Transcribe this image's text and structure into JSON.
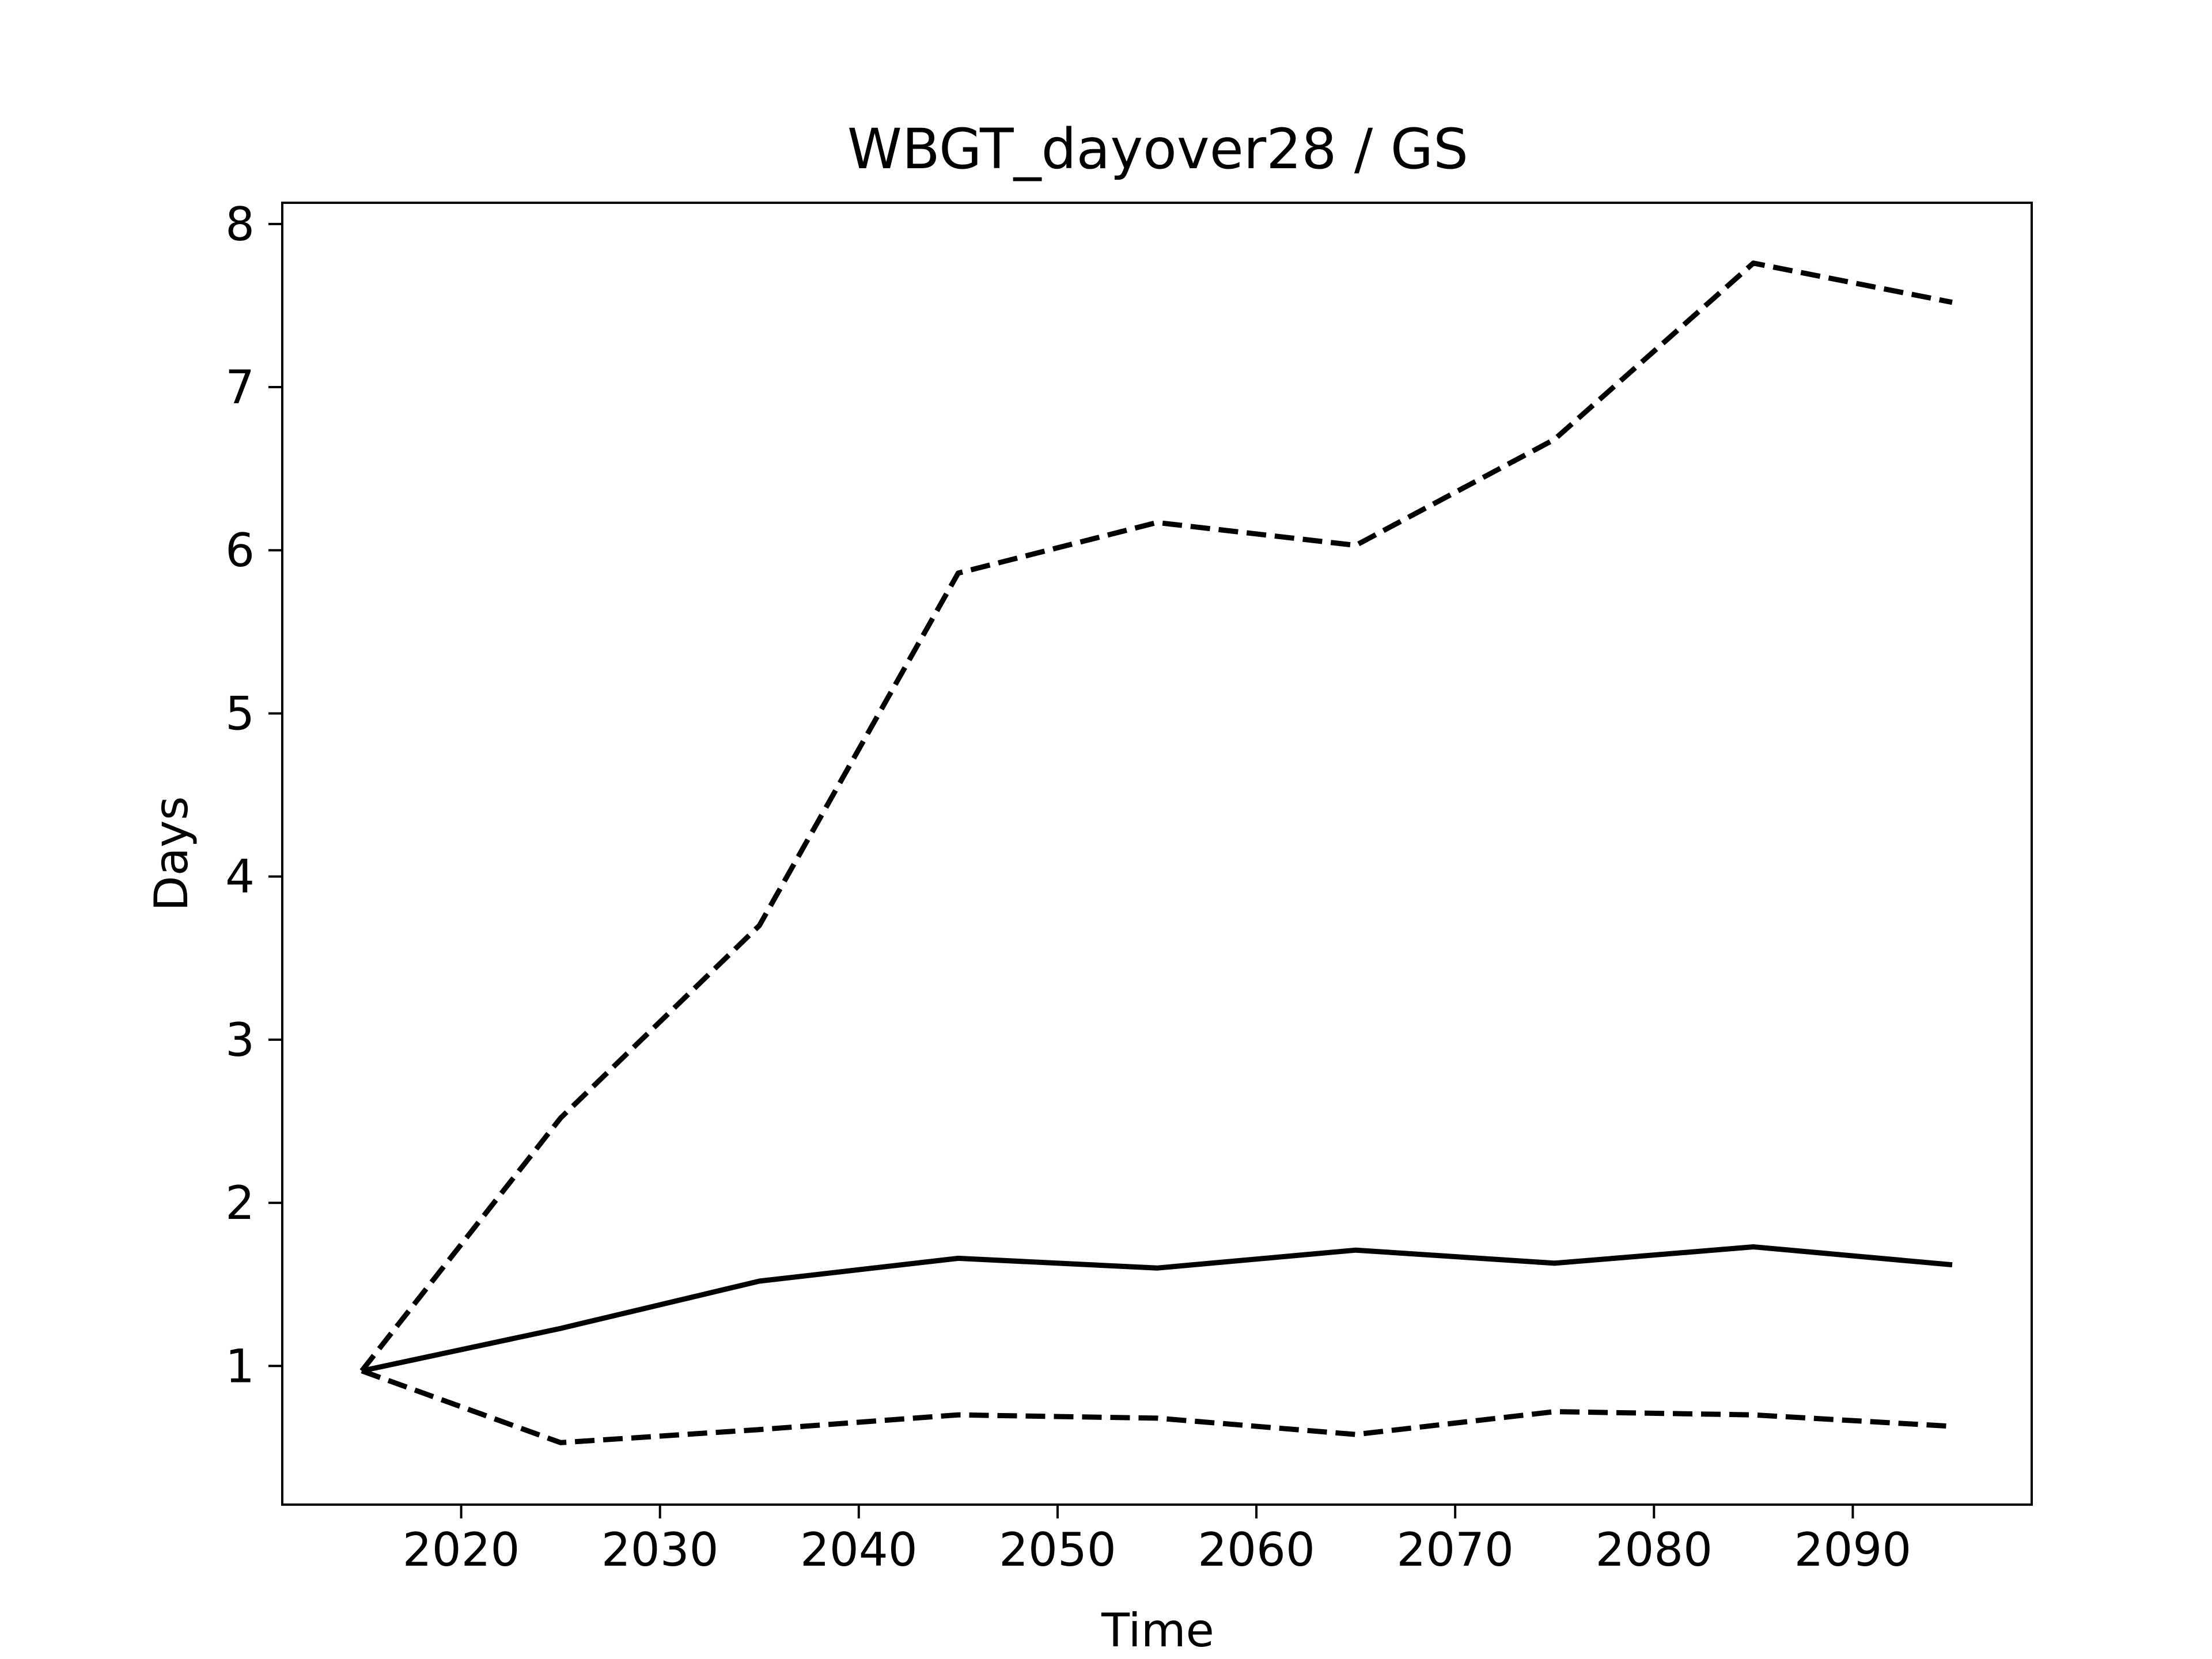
{
  "chart_data": {
    "type": "line",
    "title": "WBGT_dayover28 / GS",
    "xlabel": "Time",
    "ylabel": "Days",
    "xlim": [
      2011,
      2099
    ],
    "ylim": [
      0.15,
      8.13
    ],
    "xticks": [
      2020,
      2030,
      2040,
      2050,
      2060,
      2070,
      2080,
      2090
    ],
    "xtick_labels": [
      "2020",
      "2030",
      "2040",
      "2050",
      "2060",
      "2070",
      "2080",
      "2090"
    ],
    "yticks": [
      1,
      2,
      3,
      4,
      5,
      6,
      7,
      8
    ],
    "ytick_labels": [
      "1",
      "2",
      "3",
      "4",
      "5",
      "6",
      "7",
      "8"
    ],
    "grid": false,
    "legend": null,
    "x": [
      2015,
      2025,
      2035,
      2045,
      2055,
      2065,
      2075,
      2085,
      2095
    ],
    "series": [
      {
        "key": "upper",
        "style": "dashed",
        "color": "#000000",
        "values": [
          0.97,
          2.52,
          3.7,
          5.86,
          6.17,
          6.03,
          6.68,
          7.76,
          7.52
        ]
      },
      {
        "key": "median",
        "style": "solid",
        "color": "#000000",
        "values": [
          0.97,
          1.23,
          1.52,
          1.66,
          1.6,
          1.71,
          1.63,
          1.73,
          1.62
        ]
      },
      {
        "key": "lower",
        "style": "dashed",
        "color": "#000000",
        "values": [
          0.97,
          0.53,
          0.61,
          0.7,
          0.68,
          0.58,
          0.72,
          0.7,
          0.63
        ]
      }
    ]
  }
}
